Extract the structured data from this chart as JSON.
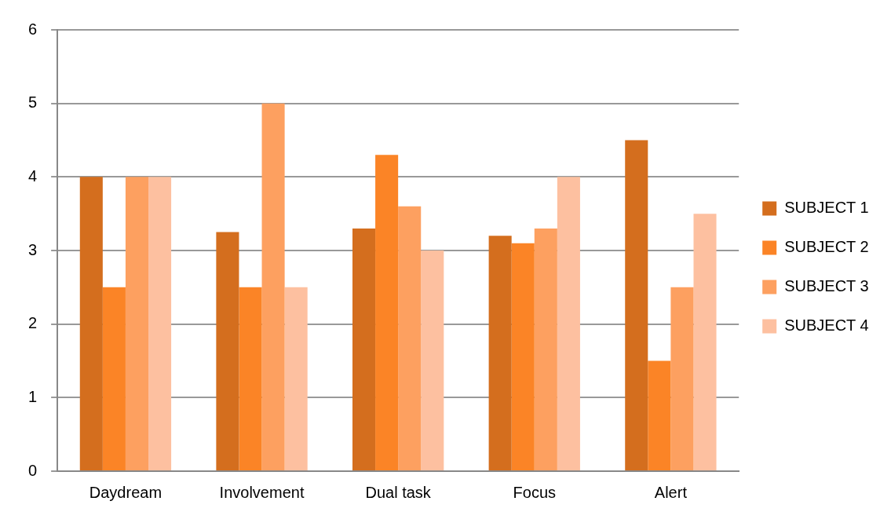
{
  "chart_data": {
    "type": "bar",
    "categories": [
      "Daydream",
      "Involvement",
      "Dual task",
      "Focus",
      "Alert"
    ],
    "series": [
      {
        "name": "SUBJECT 1",
        "color": "#d46e1e",
        "values": [
          4,
          3.25,
          3.3,
          3.2,
          4.5
        ]
      },
      {
        "name": "SUBJECT 2",
        "color": "#fb8426",
        "values": [
          2.5,
          2.5,
          4.3,
          3.1,
          1.5
        ]
      },
      {
        "name": "SUBJECT 3",
        "color": "#fda060",
        "values": [
          4,
          5,
          3.6,
          3.3,
          2.5
        ]
      },
      {
        "name": "SUBJECT 4",
        "color": "#fdc0a0",
        "values": [
          4,
          2.5,
          3,
          4,
          3.5
        ]
      }
    ],
    "ylim": [
      0,
      6
    ],
    "yticks": [
      0,
      1,
      2,
      3,
      4,
      5,
      6
    ],
    "grid": "y",
    "legend": "right"
  }
}
